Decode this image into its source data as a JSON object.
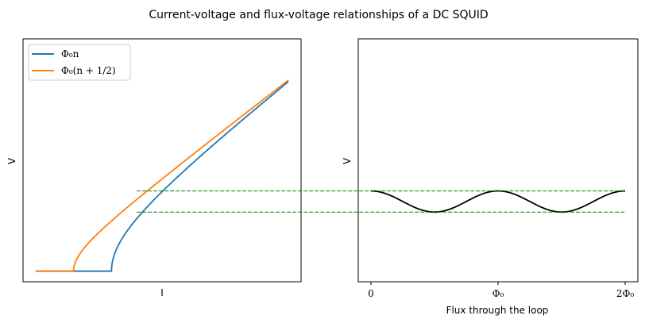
{
  "figure": {
    "title": "Current-voltage and flux-voltage relationships of a DC SQUID"
  },
  "chart_data": [
    {
      "type": "line",
      "xlabel": "I",
      "ylabel": "V",
      "x_ticks": [],
      "y_ticks": [],
      "xlim": [
        -0.25,
        5.25
      ],
      "ylim": [
        -0.2,
        4.4
      ],
      "legend": {
        "placement": "top-left",
        "entries": [
          "Φ₀n",
          "Φ₀(n + 1/2)"
        ]
      },
      "series": [
        {
          "name": "Φ₀n",
          "color": "#1f77b4",
          "critical_current": 1.5,
          "x": [
            0,
            1.5,
            1.52,
            1.6,
            1.75,
            2.0,
            2.25,
            2.5,
            3.0,
            3.5,
            4.0,
            4.5,
            5.0
          ],
          "y": [
            0,
            0,
            0.24,
            0.55,
            0.81,
            1.12,
            1.38,
            1.61,
            2.04,
            2.45,
            2.84,
            3.22,
            3.59
          ]
        },
        {
          "name": "Φ₀(n + 1/2)",
          "color": "#ff7f0e",
          "critical_current": 0.75,
          "x": [
            0,
            0.75,
            0.77,
            0.85,
            1.0,
            1.25,
            1.5,
            1.75,
            2.0,
            2.5,
            3.0,
            3.5,
            4.0,
            4.5,
            5.0
          ],
          "y": [
            0,
            0,
            0.18,
            0.43,
            0.67,
            0.94,
            1.17,
            1.37,
            1.56,
            1.92,
            2.27,
            2.62,
            2.96,
            3.29,
            3.62
          ]
        }
      ],
      "reference_lines": [
        {
          "y": 1.52,
          "x_start": 2.0,
          "color": "#008000",
          "style": "dashed"
        },
        {
          "y": 1.12,
          "x_start": 2.0,
          "color": "#008000",
          "style": "dashed"
        }
      ]
    },
    {
      "type": "line",
      "xlabel": "Flux through the loop",
      "ylabel": "V",
      "x_ticks": [
        {
          "value": 0,
          "label": "0"
        },
        {
          "value": 1,
          "label": "Φ₀"
        },
        {
          "value": 2,
          "label": "2Φ₀"
        }
      ],
      "y_ticks": [],
      "xlim": [
        -0.1,
        2.1
      ],
      "ylim": [
        -0.2,
        4.4
      ],
      "series": [
        {
          "color": "#000000",
          "x": [
            0,
            0.5,
            1,
            1.5,
            2
          ],
          "y": [
            1.52,
            1.12,
            1.52,
            1.12,
            1.52
          ]
        }
      ],
      "reference_lines": [
        {
          "y": 1.52,
          "color": "#008000",
          "style": "dashed"
        },
        {
          "y": 1.12,
          "color": "#008000",
          "style": "dashed"
        }
      ]
    }
  ]
}
